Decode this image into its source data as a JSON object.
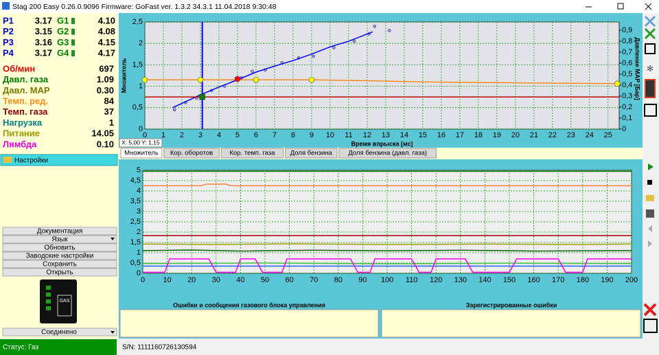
{
  "window": {
    "title": "Stag 200 Easy 0.26.0.9096 Firmware: GoFast  ver. 1.3.2  34.3.1   11.04.2018 9:30:48"
  },
  "injectors": [
    {
      "p": "P1",
      "p_value": "3.17",
      "g": "G1",
      "g_value": "4.10"
    },
    {
      "p": "P2",
      "p_value": "3.15",
      "g": "G2",
      "g_value": "4.08"
    },
    {
      "p": "P3",
      "p_value": "3.16",
      "g": "G3",
      "g_value": "4.15"
    },
    {
      "p": "P4",
      "p_value": "3.17",
      "g": "G4",
      "g_value": "4.17"
    }
  ],
  "parameters": [
    {
      "label": "Об/мин",
      "value": "697",
      "color": "#e00000"
    },
    {
      "label": "Давл. газа",
      "value": "1.09",
      "color": "#007a00"
    },
    {
      "label": "Давл. MAP",
      "value": "0.30",
      "color": "#7a7a00"
    },
    {
      "label": "Темп. ред.",
      "value": "84",
      "color": "#ff8a1e"
    },
    {
      "label": "Темп. газа",
      "value": "37",
      "color": "#8b0000"
    },
    {
      "label": "Нагрузка",
      "value": "1",
      "color": "#008080"
    },
    {
      "label": "Питание",
      "value": "14.05",
      "color": "#9a9a00"
    },
    {
      "label": "Лямбда",
      "value": "0.10",
      "color": "#e000e0"
    }
  ],
  "settings_panel": "Настройки",
  "menu": [
    "Документация",
    "Язык",
    "Обновить",
    "Заводские настройки",
    "Сохранить",
    "Открыть"
  ],
  "connection": "Соединено",
  "status": "Статус: Газ",
  "serial": "S/N: 1111160726130594",
  "cursor_readout": "X: 5,00  Y: 1,15",
  "tabs": [
    "Множитель",
    "Кор. оборотов",
    "Кор. темп. газа",
    "Доля бензина",
    "Доля бензина (давл. газа)"
  ],
  "panels": {
    "errors_title": "Ошибки и сообщения газового блока управления",
    "registered_title": "Зарегистрированные ошибки"
  },
  "chart_data": [
    {
      "type": "line",
      "y_label": "Множитель",
      "y2_label": "Давление MAP [Бар]",
      "x_label": "Время впрыска [мс]",
      "xlim": [
        0,
        25.6
      ],
      "xticks": [
        0,
        1,
        2,
        3,
        4,
        5,
        6,
        7,
        8,
        9,
        10,
        11,
        12,
        13,
        14,
        15,
        16,
        17,
        18,
        19,
        20,
        21,
        22,
        23,
        24,
        25
      ],
      "ylim": [
        0,
        2.5
      ],
      "yticks": [
        0,
        {
          "value": 0.5,
          "label": "0,5"
        },
        1,
        {
          "value": 1.5,
          "label": "1,5"
        },
        2,
        {
          "value": 2.5,
          "label": "2,5"
        }
      ],
      "y2lim": [
        0,
        0.975
      ],
      "y2ticks": [
        0,
        {
          "value": 0.1,
          "label": "0,1"
        },
        {
          "value": 0.2,
          "label": "0,2"
        },
        {
          "value": 0.3,
          "label": "0,3"
        },
        {
          "value": 0.4,
          "label": "0,4"
        },
        {
          "value": 0.5,
          "label": "0,5"
        },
        {
          "value": 0.6,
          "label": "0,6"
        },
        {
          "value": 0.7,
          "label": "0,7"
        },
        {
          "value": 0.8,
          "label": "0,8"
        },
        {
          "value": 0.9,
          "label": "0,9"
        }
      ],
      "grid": true,
      "cursor_x": 3.1,
      "cursor_color": "#0000ff",
      "series": [
        {
          "mode": "markers",
          "color": "#9090ff",
          "x": [
            1.6,
            2.2,
            2.8,
            3.6,
            4.3,
            5.2,
            5.8,
            6.5,
            7.4,
            8.3,
            9.1,
            10.2,
            11.3,
            12.1,
            12.4,
            13.2
          ],
          "values": [
            0.45,
            0.62,
            0.72,
            0.9,
            1.0,
            1.2,
            1.35,
            1.38,
            1.55,
            1.66,
            1.7,
            1.9,
            2.05,
            2.22,
            2.4,
            2.3
          ]
        },
        {
          "mode": "line",
          "color": "#0000ff",
          "x": [
            1.5,
            2,
            3,
            4,
            5,
            6,
            7,
            8,
            9,
            10,
            11,
            12.3
          ],
          "values": [
            0.5,
            0.6,
            0.8,
            0.98,
            1.15,
            1.33,
            1.47,
            1.6,
            1.75,
            1.92,
            2.05,
            2.27
          ]
        },
        {
          "mode": "line",
          "color": "#ff8c1a",
          "x": [
            0,
            9,
            12,
            15,
            20,
            25.6
          ],
          "values": [
            1.15,
            1.15,
            1.13,
            1.1,
            1.08,
            1.06
          ]
        },
        {
          "mode": "line",
          "color": "#c00000",
          "x": [
            0,
            25.6
          ],
          "values": [
            0.75,
            0.75
          ]
        },
        {
          "mode": "markers",
          "color": "#ffff00",
          "x": [
            0,
            3,
            6,
            9,
            25.5
          ],
          "values": [
            1.15,
            1.15,
            1.15,
            1.15,
            1.06
          ]
        },
        {
          "mode": "markers",
          "color": "#ff0000",
          "x": [
            5
          ],
          "values": [
            1.17
          ]
        },
        {
          "mode": "squares",
          "color": "#008000",
          "x": [
            3.1
          ],
          "values": [
            0.75
          ]
        }
      ]
    },
    {
      "type": "line",
      "xlim": [
        0,
        200
      ],
      "xticks": [
        0,
        10,
        20,
        30,
        40,
        50,
        60,
        70,
        80,
        90,
        100,
        110,
        120,
        130,
        140,
        150,
        160,
        170,
        180,
        190,
        200
      ],
      "ylim": [
        0,
        5
      ],
      "yticks": [
        0,
        {
          "value": 0.5,
          "label": "0,5"
        },
        1,
        {
          "value": 1.5,
          "label": "1,5"
        },
        2,
        {
          "value": 2.5,
          "label": "2,5"
        },
        3,
        {
          "value": 3.5,
          "label": "3,5"
        },
        4,
        {
          "value": 4.5,
          "label": "4,5"
        },
        5
      ],
      "grid": true,
      "series": [
        {
          "mode": "line",
          "color": "#007000",
          "x": [
            0,
            200
          ],
          "values": [
            4.95,
            4.95
          ]
        },
        {
          "mode": "line",
          "color": "#ff8040",
          "x": [
            0,
            24,
            26,
            34,
            36,
            200
          ],
          "values": [
            4.25,
            4.25,
            4.33,
            4.33,
            4.25,
            4.25
          ]
        },
        {
          "mode": "line",
          "color": "#a00000",
          "x": [
            0,
            200
          ],
          "values": [
            1.83,
            1.83
          ]
        },
        {
          "mode": "line",
          "color": "#a0a000",
          "x": [
            0,
            30,
            60,
            100,
            140,
            180,
            200
          ],
          "values": [
            1.42,
            1.4,
            1.43,
            1.4,
            1.42,
            1.4,
            1.42
          ]
        },
        {
          "mode": "line",
          "color": "#006000",
          "x": [
            0,
            20,
            40,
            70,
            100,
            130,
            160,
            200
          ],
          "values": [
            1.1,
            1.13,
            1.08,
            1.12,
            1.09,
            1.12,
            1.08,
            1.1
          ]
        },
        {
          "mode": "line",
          "color": "#40c040",
          "x": [
            0,
            50,
            100,
            150,
            200
          ],
          "values": [
            0.47,
            0.5,
            0.46,
            0.49,
            0.47
          ]
        },
        {
          "mode": "line",
          "color": "#2060ff",
          "x": [
            0,
            200
          ],
          "values": [
            0.35,
            0.35
          ]
        },
        {
          "mode": "line",
          "color": "#ff00ff",
          "x": [
            0,
            9,
            11,
            27,
            30,
            38,
            40,
            46,
            49,
            57,
            59,
            85,
            88,
            93,
            95,
            110,
            113,
            118,
            120,
            132,
            135,
            150,
            153,
            170,
            173,
            180,
            182,
            200
          ],
          "values": [
            0.05,
            0.05,
            0.7,
            0.7,
            0.05,
            0.05,
            0.7,
            0.7,
            0.05,
            0.05,
            0.7,
            0.7,
            0.05,
            0.05,
            0.7,
            0.7,
            0.05,
            0.05,
            0.7,
            0.7,
            0.05,
            0.05,
            0.7,
            0.7,
            0.05,
            0.05,
            0.7,
            0.7
          ]
        }
      ]
    }
  ]
}
